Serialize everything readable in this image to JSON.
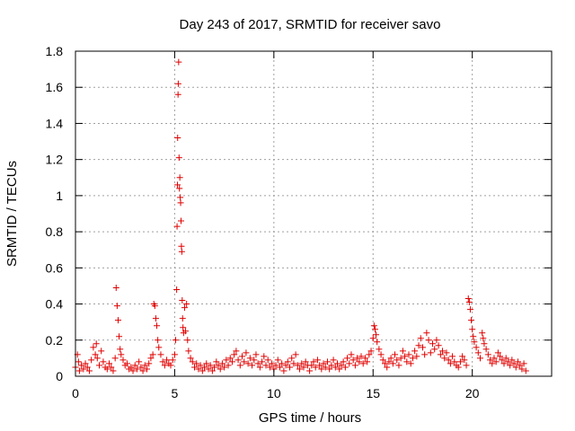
{
  "chart_data": {
    "type": "scatter",
    "title": "Day 243 of 2017, SRMTID for receiver savo",
    "xlabel": "GPS time / hours",
    "ylabel": "SRMTID / TECUs",
    "xlim": [
      0,
      24
    ],
    "ylim": [
      0,
      1.8
    ],
    "x_ticks": [
      0,
      5,
      10,
      15,
      20
    ],
    "x_tick_labels": [
      "0",
      "5",
      "10",
      "15",
      "20"
    ],
    "y_ticks": [
      0,
      0.2,
      0.4,
      0.6,
      0.8,
      1,
      1.2,
      1.4,
      1.6,
      1.8
    ],
    "y_tick_labels": [
      "0",
      "0.2",
      "0.4",
      "0.6",
      "0.8",
      "1",
      "1.2",
      "1.4",
      "1.6",
      "1.8"
    ],
    "grid": true,
    "marker": "+",
    "series": [
      {
        "name": "SRMTID",
        "color": "#e00000",
        "points": [
          [
            0.0,
            0.05
          ],
          [
            0.1,
            0.12
          ],
          [
            0.15,
            0.08
          ],
          [
            0.2,
            0.03
          ],
          [
            0.3,
            0.06
          ],
          [
            0.4,
            0.04
          ],
          [
            0.5,
            0.07
          ],
          [
            0.6,
            0.05
          ],
          [
            0.7,
            0.03
          ],
          [
            0.8,
            0.09
          ],
          [
            0.9,
            0.16
          ],
          [
            1.0,
            0.12
          ],
          [
            1.05,
            0.18
          ],
          [
            1.1,
            0.1
          ],
          [
            1.2,
            0.06
          ],
          [
            1.3,
            0.14
          ],
          [
            1.4,
            0.08
          ],
          [
            1.5,
            0.05
          ],
          [
            1.6,
            0.04
          ],
          [
            1.7,
            0.07
          ],
          [
            1.8,
            0.05
          ],
          [
            1.9,
            0.03
          ],
          [
            2.0,
            0.1
          ],
          [
            2.05,
            0.49
          ],
          [
            2.1,
            0.39
          ],
          [
            2.15,
            0.31
          ],
          [
            2.2,
            0.22
          ],
          [
            2.25,
            0.15
          ],
          [
            2.3,
            0.12
          ],
          [
            2.4,
            0.09
          ],
          [
            2.5,
            0.06
          ],
          [
            2.6,
            0.07
          ],
          [
            2.7,
            0.04
          ],
          [
            2.8,
            0.05
          ],
          [
            2.9,
            0.03
          ],
          [
            3.0,
            0.06
          ],
          [
            3.1,
            0.04
          ],
          [
            3.2,
            0.08
          ],
          [
            3.3,
            0.05
          ],
          [
            3.4,
            0.03
          ],
          [
            3.5,
            0.06
          ],
          [
            3.6,
            0.04
          ],
          [
            3.7,
            0.07
          ],
          [
            3.8,
            0.1
          ],
          [
            3.9,
            0.12
          ],
          [
            3.95,
            0.4
          ],
          [
            4.0,
            0.39
          ],
          [
            4.05,
            0.32
          ],
          [
            4.1,
            0.28
          ],
          [
            4.15,
            0.2
          ],
          [
            4.2,
            0.16
          ],
          [
            4.3,
            0.12
          ],
          [
            4.4,
            0.08
          ],
          [
            4.5,
            0.06
          ],
          [
            4.6,
            0.09
          ],
          [
            4.7,
            0.07
          ],
          [
            4.8,
            0.06
          ],
          [
            4.9,
            0.09
          ],
          [
            5.0,
            0.12
          ],
          [
            5.05,
            0.2
          ],
          [
            5.1,
            0.48
          ],
          [
            5.12,
            0.83
          ],
          [
            5.14,
            1.06
          ],
          [
            5.15,
            1.32
          ],
          [
            5.17,
            1.56
          ],
          [
            5.18,
            1.62
          ],
          [
            5.2,
            1.74
          ],
          [
            5.22,
            1.21
          ],
          [
            5.24,
            1.04
          ],
          [
            5.26,
            1.1
          ],
          [
            5.28,
            0.99
          ],
          [
            5.3,
            0.96
          ],
          [
            5.32,
            0.86
          ],
          [
            5.34,
            0.72
          ],
          [
            5.36,
            0.69
          ],
          [
            5.38,
            0.42
          ],
          [
            5.4,
            0.32
          ],
          [
            5.42,
            0.27
          ],
          [
            5.45,
            0.24
          ],
          [
            5.5,
            0.38
          ],
          [
            5.55,
            0.25
          ],
          [
            5.6,
            0.4
          ],
          [
            5.65,
            0.2
          ],
          [
            5.7,
            0.14
          ],
          [
            5.8,
            0.1
          ],
          [
            5.9,
            0.08
          ],
          [
            6.0,
            0.05
          ],
          [
            6.1,
            0.07
          ],
          [
            6.2,
            0.04
          ],
          [
            6.3,
            0.06
          ],
          [
            6.4,
            0.03
          ],
          [
            6.5,
            0.05
          ],
          [
            6.6,
            0.07
          ],
          [
            6.7,
            0.04
          ],
          [
            6.8,
            0.06
          ],
          [
            6.9,
            0.03
          ],
          [
            7.0,
            0.05
          ],
          [
            7.1,
            0.08
          ],
          [
            7.2,
            0.06
          ],
          [
            7.3,
            0.04
          ],
          [
            7.4,
            0.07
          ],
          [
            7.5,
            0.05
          ],
          [
            7.6,
            0.09
          ],
          [
            7.7,
            0.06
          ],
          [
            7.8,
            0.1
          ],
          [
            7.9,
            0.08
          ],
          [
            8.0,
            0.12
          ],
          [
            8.1,
            0.14
          ],
          [
            8.2,
            0.09
          ],
          [
            8.3,
            0.06
          ],
          [
            8.4,
            0.11
          ],
          [
            8.5,
            0.08
          ],
          [
            8.6,
            0.13
          ],
          [
            8.7,
            0.07
          ],
          [
            8.8,
            0.1
          ],
          [
            8.9,
            0.06
          ],
          [
            9.0,
            0.09
          ],
          [
            9.1,
            0.12
          ],
          [
            9.2,
            0.07
          ],
          [
            9.3,
            0.05
          ],
          [
            9.4,
            0.08
          ],
          [
            9.5,
            0.11
          ],
          [
            9.6,
            0.06
          ],
          [
            9.7,
            0.09
          ],
          [
            9.8,
            0.05
          ],
          [
            9.9,
            0.07
          ],
          [
            10.0,
            0.04
          ],
          [
            10.1,
            0.06
          ],
          [
            10.2,
            0.09
          ],
          [
            10.3,
            0.05
          ],
          [
            10.4,
            0.07
          ],
          [
            10.5,
            0.03
          ],
          [
            10.6,
            0.06
          ],
          [
            10.7,
            0.08
          ],
          [
            10.8,
            0.05
          ],
          [
            10.9,
            0.1
          ],
          [
            11.0,
            0.07
          ],
          [
            11.1,
            0.12
          ],
          [
            11.2,
            0.06
          ],
          [
            11.3,
            0.04
          ],
          [
            11.4,
            0.07
          ],
          [
            11.5,
            0.05
          ],
          [
            11.6,
            0.08
          ],
          [
            11.7,
            0.06
          ],
          [
            11.8,
            0.03
          ],
          [
            11.9,
            0.06
          ],
          [
            12.0,
            0.08
          ],
          [
            12.1,
            0.05
          ],
          [
            12.2,
            0.09
          ],
          [
            12.3,
            0.06
          ],
          [
            12.4,
            0.04
          ],
          [
            12.5,
            0.07
          ],
          [
            12.6,
            0.05
          ],
          [
            12.7,
            0.08
          ],
          [
            12.8,
            0.04
          ],
          [
            12.9,
            0.06
          ],
          [
            13.0,
            0.09
          ],
          [
            13.1,
            0.05
          ],
          [
            13.2,
            0.07
          ],
          [
            13.3,
            0.04
          ],
          [
            13.4,
            0.06
          ],
          [
            13.5,
            0.08
          ],
          [
            13.6,
            0.05
          ],
          [
            13.7,
            0.1
          ],
          [
            13.8,
            0.07
          ],
          [
            13.9,
            0.12
          ],
          [
            14.0,
            0.09
          ],
          [
            14.1,
            0.06
          ],
          [
            14.2,
            0.1
          ],
          [
            14.3,
            0.08
          ],
          [
            14.4,
            0.11
          ],
          [
            14.5,
            0.07
          ],
          [
            14.6,
            0.1
          ],
          [
            14.7,
            0.08
          ],
          [
            14.8,
            0.12
          ],
          [
            14.9,
            0.14
          ],
          [
            15.0,
            0.21
          ],
          [
            15.05,
            0.28
          ],
          [
            15.1,
            0.26
          ],
          [
            15.15,
            0.23
          ],
          [
            15.2,
            0.19
          ],
          [
            15.3,
            0.15
          ],
          [
            15.4,
            0.12
          ],
          [
            15.5,
            0.09
          ],
          [
            15.6,
            0.07
          ],
          [
            15.7,
            0.05
          ],
          [
            15.8,
            0.08
          ],
          [
            15.9,
            0.1
          ],
          [
            16.0,
            0.07
          ],
          [
            16.1,
            0.12
          ],
          [
            16.2,
            0.09
          ],
          [
            16.3,
            0.06
          ],
          [
            16.4,
            0.1
          ],
          [
            16.5,
            0.14
          ],
          [
            16.6,
            0.11
          ],
          [
            16.7,
            0.08
          ],
          [
            16.8,
            0.12
          ],
          [
            16.9,
            0.07
          ],
          [
            17.0,
            0.1
          ],
          [
            17.1,
            0.14
          ],
          [
            17.2,
            0.11
          ],
          [
            17.3,
            0.17
          ],
          [
            17.4,
            0.21
          ],
          [
            17.5,
            0.16
          ],
          [
            17.6,
            0.12
          ],
          [
            17.7,
            0.24
          ],
          [
            17.8,
            0.2
          ],
          [
            17.9,
            0.13
          ],
          [
            18.0,
            0.18
          ],
          [
            18.1,
            0.15
          ],
          [
            18.2,
            0.2
          ],
          [
            18.3,
            0.17
          ],
          [
            18.4,
            0.12
          ],
          [
            18.5,
            0.14
          ],
          [
            18.6,
            0.1
          ],
          [
            18.7,
            0.13
          ],
          [
            18.8,
            0.09
          ],
          [
            18.9,
            0.07
          ],
          [
            19.0,
            0.11
          ],
          [
            19.1,
            0.08
          ],
          [
            19.2,
            0.06
          ],
          [
            19.3,
            0.05
          ],
          [
            19.4,
            0.08
          ],
          [
            19.5,
            0.11
          ],
          [
            19.6,
            0.09
          ],
          [
            19.7,
            0.06
          ],
          [
            19.8,
            0.43
          ],
          [
            19.85,
            0.41
          ],
          [
            19.9,
            0.37
          ],
          [
            19.95,
            0.31
          ],
          [
            20.0,
            0.26
          ],
          [
            20.05,
            0.22
          ],
          [
            20.1,
            0.19
          ],
          [
            20.2,
            0.16
          ],
          [
            20.3,
            0.13
          ],
          [
            20.4,
            0.1
          ],
          [
            20.5,
            0.24
          ],
          [
            20.55,
            0.21
          ],
          [
            20.6,
            0.18
          ],
          [
            20.7,
            0.15
          ],
          [
            20.8,
            0.12
          ],
          [
            20.9,
            0.09
          ],
          [
            21.0,
            0.07
          ],
          [
            21.1,
            0.1
          ],
          [
            21.2,
            0.08
          ],
          [
            21.3,
            0.13
          ],
          [
            21.4,
            0.11
          ],
          [
            21.5,
            0.09
          ],
          [
            21.6,
            0.07
          ],
          [
            21.7,
            0.1
          ],
          [
            21.8,
            0.08
          ],
          [
            21.9,
            0.06
          ],
          [
            22.0,
            0.09
          ],
          [
            22.1,
            0.07
          ],
          [
            22.2,
            0.05
          ],
          [
            22.3,
            0.08
          ],
          [
            22.4,
            0.06
          ],
          [
            22.5,
            0.04
          ],
          [
            22.6,
            0.07
          ],
          [
            22.7,
            0.03
          ]
        ]
      }
    ]
  }
}
